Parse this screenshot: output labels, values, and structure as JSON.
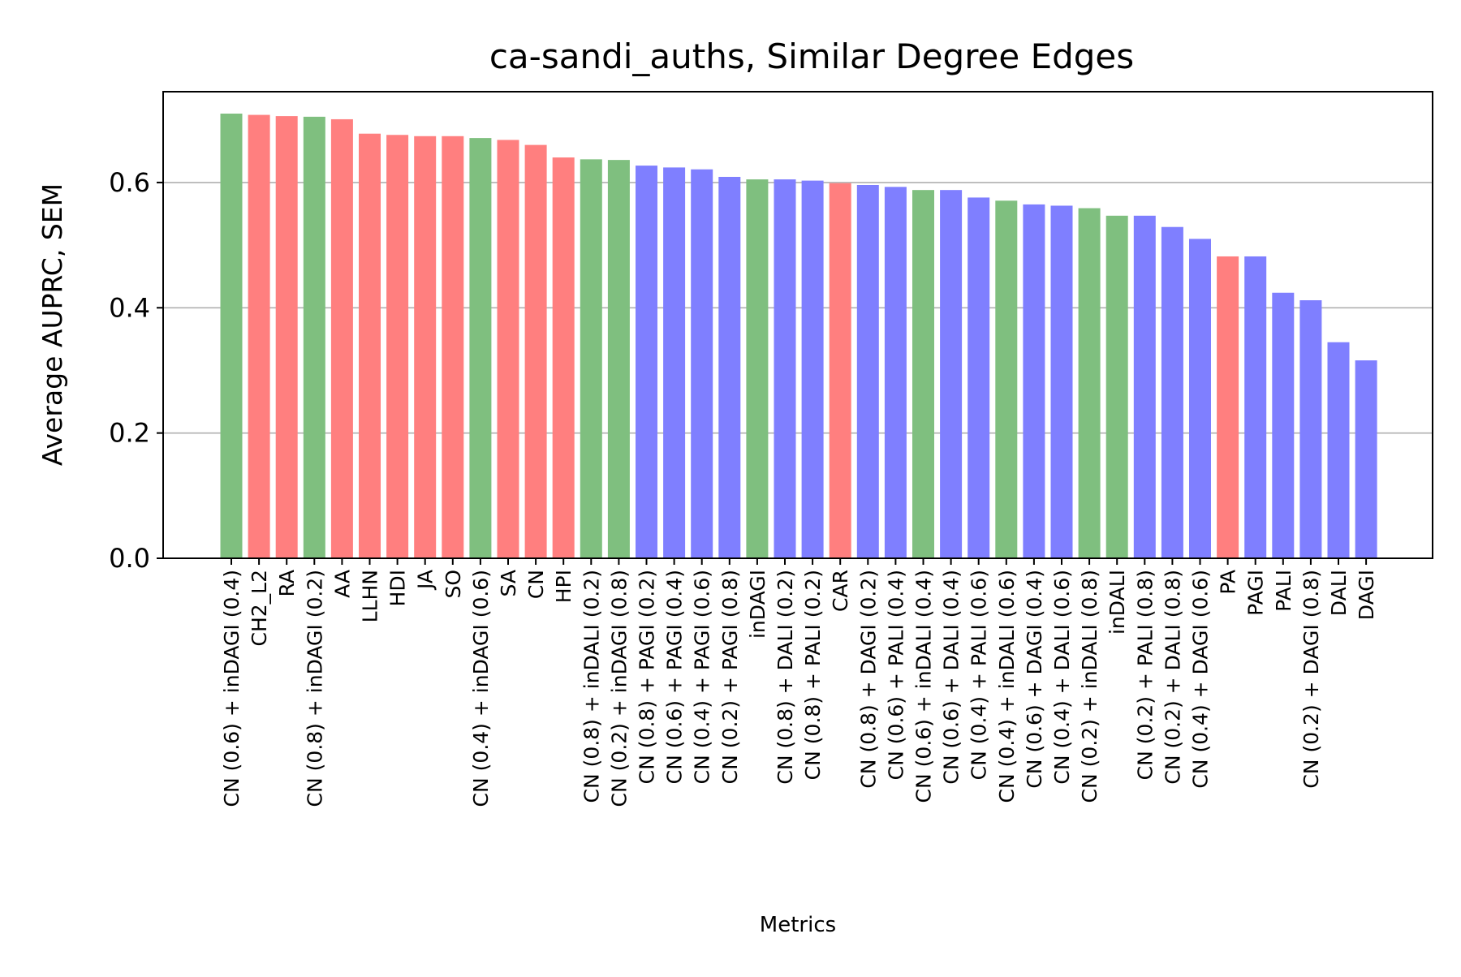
{
  "chart_data": {
    "type": "bar",
    "title": "ca-sandi_auths, Similar Degree Edges",
    "xlabel": "Metrics",
    "ylabel": "Average AUPRC, SEM",
    "ylim": [
      0,
      0.745
    ],
    "yticks": [
      0.0,
      0.2,
      0.4,
      0.6
    ],
    "ytick_labels": [
      "0.0",
      "0.2",
      "0.4",
      "0.6"
    ],
    "grid": "horizontal",
    "colors": {
      "green": "#7fbf7f",
      "red": "#ff7f7f",
      "blue": "#7f7fff"
    },
    "categories": [
      "CN (0.6) + inDAGI (0.4)",
      "CH2_L2",
      "RA",
      "CN (0.8) + inDAGI (0.2)",
      "AA",
      "LLHN",
      "HDI",
      "JA",
      "SO",
      "CN (0.4) + inDAGI (0.6)",
      "SA",
      "CN",
      "HPI",
      "CN (0.8) + inDALI (0.2)",
      "CN (0.2) + inDAGI (0.8)",
      "CN (0.8) + PAGI (0.2)",
      "CN (0.6) + PAGI (0.4)",
      "CN (0.4) + PAGI (0.6)",
      "CN (0.2) + PAGI (0.8)",
      "inDAGI",
      "CN (0.8) + DALI (0.2)",
      "CN (0.8) + PALI (0.2)",
      "CAR",
      "CN (0.8) + DAGI (0.2)",
      "CN (0.6) + PALI (0.4)",
      "CN (0.6) + inDALI (0.4)",
      "CN (0.6) + DALI (0.4)",
      "CN (0.4) + PALI (0.6)",
      "CN (0.4) + inDALI (0.6)",
      "CN (0.6) + DAGI (0.4)",
      "CN (0.4) + DALI (0.6)",
      "CN (0.2) + inDALI (0.8)",
      "inDALI",
      "CN (0.2) + PALI (0.8)",
      "CN (0.2) + DALI (0.8)",
      "CN (0.4) + DAGI (0.6)",
      "PA",
      "PAGI",
      "PALI",
      "CN (0.2) + DAGI (0.8)",
      "DALI",
      "DAGI"
    ],
    "values": [
      0.71,
      0.708,
      0.706,
      0.705,
      0.701,
      0.678,
      0.676,
      0.674,
      0.674,
      0.671,
      0.668,
      0.66,
      0.64,
      0.637,
      0.636,
      0.627,
      0.624,
      0.621,
      0.609,
      0.605,
      0.605,
      0.603,
      0.599,
      0.596,
      0.593,
      0.588,
      0.588,
      0.576,
      0.571,
      0.565,
      0.563,
      0.559,
      0.547,
      0.547,
      0.529,
      0.51,
      0.482,
      0.482,
      0.424,
      0.412,
      0.345,
      0.316
    ],
    "bar_colors": [
      "green",
      "red",
      "red",
      "green",
      "red",
      "red",
      "red",
      "red",
      "red",
      "green",
      "red",
      "red",
      "red",
      "green",
      "green",
      "blue",
      "blue",
      "blue",
      "blue",
      "green",
      "blue",
      "blue",
      "red",
      "blue",
      "blue",
      "green",
      "blue",
      "blue",
      "green",
      "blue",
      "blue",
      "green",
      "green",
      "blue",
      "blue",
      "blue",
      "red",
      "blue",
      "blue",
      "blue",
      "blue",
      "blue"
    ]
  }
}
